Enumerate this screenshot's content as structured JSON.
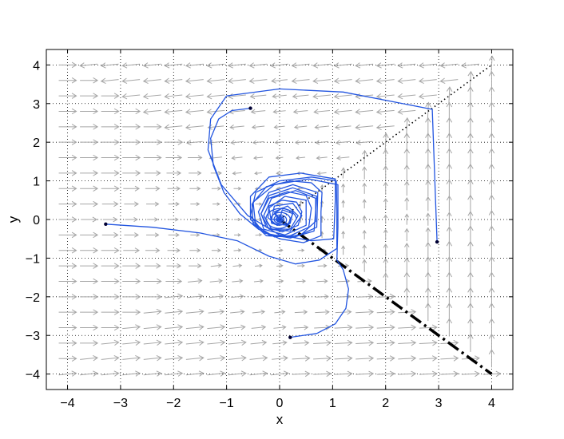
{
  "chart_data": {
    "type": "line",
    "xlabel": "x",
    "ylabel": "y",
    "xlim": [
      -4.4,
      4.4
    ],
    "ylim": [
      -4.4,
      4.4
    ],
    "xticks": [
      -4,
      -3,
      -2,
      -1,
      0,
      1,
      2,
      3,
      4
    ],
    "yticks": [
      -4,
      -3,
      -2,
      -1,
      0,
      1,
      2,
      3,
      4
    ],
    "xtick_labels": [
      "−4",
      "−3",
      "−2",
      "−1",
      "0",
      "1",
      "2",
      "3",
      "4"
    ],
    "ytick_labels": [
      "−4",
      "−3",
      "−2",
      "−1",
      "0",
      "1",
      "2",
      "3",
      "4"
    ],
    "grid": "dotted",
    "colors": {
      "trajectory": "#2255e0",
      "vector_field": "#a6a6a6",
      "switch_line_upper": "#000000",
      "switch_line_lower": "#000000"
    },
    "vector_field": {
      "description_free": true,
      "grid_min": -4,
      "grid_max": 4,
      "grid_step": 0.4
    },
    "reference_lines": [
      {
        "style": "dotted",
        "points": [
          [
            0,
            0
          ],
          [
            4,
            4
          ]
        ]
      },
      {
        "style": "dash-dot",
        "points": [
          [
            0,
            0
          ],
          [
            4,
            -4
          ]
        ]
      }
    ],
    "series": [
      {
        "start": [
          -0.55,
          2.88
        ],
        "points": [
          [
            -0.55,
            2.88
          ],
          [
            -0.9,
            2.82
          ],
          [
            -1.15,
            2.6
          ],
          [
            -1.3,
            2.1
          ],
          [
            -1.25,
            1.4
          ],
          [
            -1.05,
            0.7
          ],
          [
            -0.75,
            0.15
          ],
          [
            -0.4,
            -0.25
          ],
          [
            0.0,
            -0.5
          ],
          [
            0.45,
            -0.6
          ],
          [
            0.78,
            -0.42
          ],
          [
            0.78,
            0.2
          ],
          [
            0.8,
            0.7
          ],
          [
            0.6,
            0.95
          ],
          [
            0.2,
            1.0
          ],
          [
            -0.25,
            0.85
          ],
          [
            -0.52,
            0.4
          ],
          [
            -0.5,
            -0.1
          ],
          [
            -0.25,
            -0.42
          ],
          [
            0.15,
            -0.45
          ],
          [
            0.55,
            -0.2
          ],
          [
            0.6,
            0.3
          ],
          [
            0.5,
            0.62
          ],
          [
            0.15,
            0.72
          ],
          [
            -0.2,
            0.55
          ],
          [
            -0.35,
            0.15
          ],
          [
            -0.25,
            -0.2
          ],
          [
            0.05,
            -0.32
          ],
          [
            0.35,
            -0.15
          ],
          [
            0.42,
            0.2
          ],
          [
            0.32,
            0.45
          ],
          [
            0.05,
            0.5
          ],
          [
            -0.2,
            0.35
          ],
          [
            -0.22,
            0.05
          ],
          [
            -0.05,
            -0.15
          ],
          [
            0.2,
            -0.1
          ],
          [
            0.25,
            0.2
          ],
          [
            0.05,
            0.3
          ],
          [
            -0.1,
            0.15
          ],
          [
            0.0,
            0.0
          ]
        ]
      },
      {
        "start": [
          2.97,
          -0.58
        ],
        "points": [
          [
            2.97,
            -0.58
          ],
          [
            2.88,
            2.85
          ],
          [
            1.2,
            3.3
          ],
          [
            0.0,
            3.38
          ],
          [
            -1.0,
            3.2
          ],
          [
            -1.3,
            2.6
          ],
          [
            -1.35,
            1.8
          ],
          [
            -1.1,
            0.9
          ],
          [
            -0.6,
            0.1
          ],
          [
            0.0,
            -0.4
          ],
          [
            0.6,
            -0.55
          ],
          [
            1.02,
            -0.5
          ],
          [
            1.05,
            0.5
          ],
          [
            1.05,
            1.05
          ],
          [
            0.4,
            1.2
          ],
          [
            -0.2,
            1.1
          ],
          [
            -0.55,
            0.6
          ],
          [
            -0.55,
            0.0
          ],
          [
            -0.2,
            -0.4
          ],
          [
            0.3,
            -0.45
          ],
          [
            0.7,
            -0.2
          ],
          [
            0.72,
            0.7
          ],
          [
            0.25,
            0.9
          ],
          [
            -0.2,
            0.7
          ],
          [
            -0.4,
            0.2
          ],
          [
            -0.3,
            -0.25
          ],
          [
            0.1,
            -0.4
          ],
          [
            0.5,
            -0.15
          ],
          [
            0.5,
            0.5
          ],
          [
            0.1,
            0.6
          ],
          [
            -0.2,
            0.3
          ],
          [
            -0.15,
            -0.1
          ],
          [
            0.15,
            -0.15
          ],
          [
            0.25,
            0.15
          ],
          [
            0.05,
            0.25
          ],
          [
            0.0,
            0.0
          ]
        ]
      },
      {
        "start": [
          -3.28,
          -0.12
        ],
        "points": [
          [
            -3.28,
            -0.12
          ],
          [
            -2.4,
            -0.2
          ],
          [
            -1.5,
            -0.35
          ],
          [
            -0.8,
            -0.55
          ],
          [
            -0.2,
            -0.95
          ],
          [
            0.3,
            -1.15
          ],
          [
            0.75,
            -1.05
          ],
          [
            1.08,
            -0.75
          ],
          [
            1.08,
            0.2
          ],
          [
            1.07,
            1.0
          ],
          [
            0.6,
            1.1
          ],
          [
            0.0,
            1.0
          ],
          [
            -0.45,
            0.7
          ],
          [
            -0.55,
            0.1
          ],
          [
            -0.3,
            -0.35
          ],
          [
            0.2,
            -0.48
          ],
          [
            0.65,
            -0.3
          ],
          [
            0.7,
            0.6
          ],
          [
            0.25,
            0.82
          ],
          [
            -0.2,
            0.62
          ],
          [
            -0.35,
            0.15
          ],
          [
            -0.2,
            -0.25
          ],
          [
            0.2,
            -0.3
          ],
          [
            0.42,
            0.1
          ],
          [
            0.25,
            0.42
          ],
          [
            -0.1,
            0.35
          ],
          [
            -0.15,
            0.0
          ],
          [
            0.0,
            0.0
          ]
        ]
      },
      {
        "start": [
          0.2,
          -3.05
        ],
        "points": [
          [
            0.2,
            -3.05
          ],
          [
            0.7,
            -2.95
          ],
          [
            1.05,
            -2.7
          ],
          [
            1.25,
            -2.3
          ],
          [
            1.3,
            -1.8
          ],
          [
            1.2,
            -1.3
          ],
          [
            1.08,
            -1.05
          ],
          [
            1.1,
            -0.2
          ],
          [
            1.1,
            0.9
          ],
          [
            0.55,
            1.05
          ],
          [
            -0.1,
            0.9
          ],
          [
            -0.5,
            0.45
          ],
          [
            -0.45,
            -0.15
          ],
          [
            -0.1,
            -0.45
          ],
          [
            0.4,
            -0.4
          ],
          [
            0.68,
            -0.05
          ],
          [
            0.68,
            0.55
          ],
          [
            0.3,
            0.75
          ],
          [
            -0.15,
            0.55
          ],
          [
            -0.3,
            0.1
          ],
          [
            -0.15,
            -0.25
          ],
          [
            0.2,
            -0.25
          ],
          [
            0.35,
            0.1
          ],
          [
            0.15,
            0.35
          ],
          [
            -0.1,
            0.2
          ],
          [
            0.0,
            0.0
          ]
        ]
      }
    ]
  }
}
